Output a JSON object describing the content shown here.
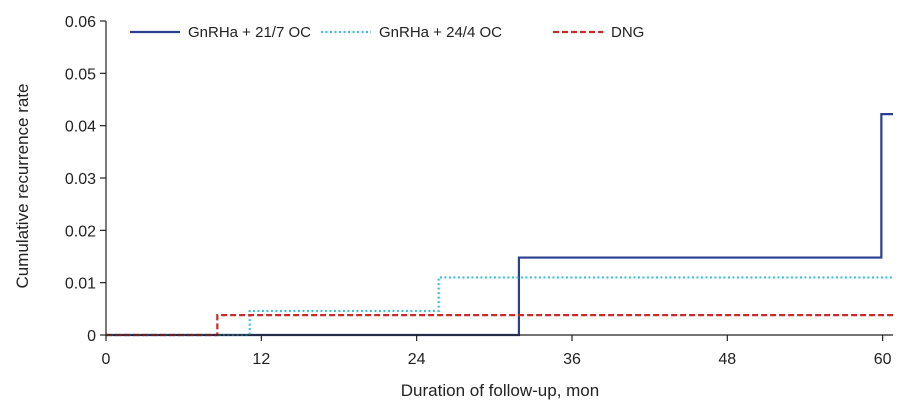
{
  "chart_data": {
    "type": "line",
    "step": true,
    "xlabel": "Duration of follow-up, mon",
    "ylabel": "Cumulative recurrence rate",
    "xlim": [
      0,
      60.8
    ],
    "ylim": [
      0,
      0.06
    ],
    "xticks": [
      0,
      12,
      24,
      36,
      48,
      60
    ],
    "yticks": [
      0,
      0.01,
      0.02,
      0.03,
      0.04,
      0.05,
      0.06
    ],
    "xtick_labels": [
      "0",
      "12",
      "24",
      "36",
      "48",
      "60"
    ],
    "ytick_labels": [
      "0",
      "0.01",
      "0.02",
      "0.03",
      "0.04",
      "0.05",
      "0.06"
    ],
    "legend_position": "top",
    "grid": false,
    "series": [
      {
        "name": "GnRHa + 21/7 OC",
        "color": "#2b3f8f",
        "dash": "solid",
        "x": [
          0,
          31.9,
          31.9,
          59.9,
          59.9,
          60.8
        ],
        "y": [
          0,
          0,
          0.0148,
          0.0148,
          0.0422,
          0.0422
        ]
      },
      {
        "name": "GnRHa + 24/4 OC",
        "color": "#3cbfd9",
        "dash": "dotted",
        "x": [
          0,
          11.1,
          11.1,
          25.7,
          25.7,
          60.8
        ],
        "y": [
          0,
          0,
          0.0046,
          0.0046,
          0.011,
          0.011
        ]
      },
      {
        "name": "DNG",
        "color": "#cc2a2a",
        "dash": "dashed",
        "x": [
          0,
          8.6,
          8.6,
          60.8
        ],
        "y": [
          0,
          0,
          0.0038,
          0.0038
        ]
      }
    ]
  }
}
